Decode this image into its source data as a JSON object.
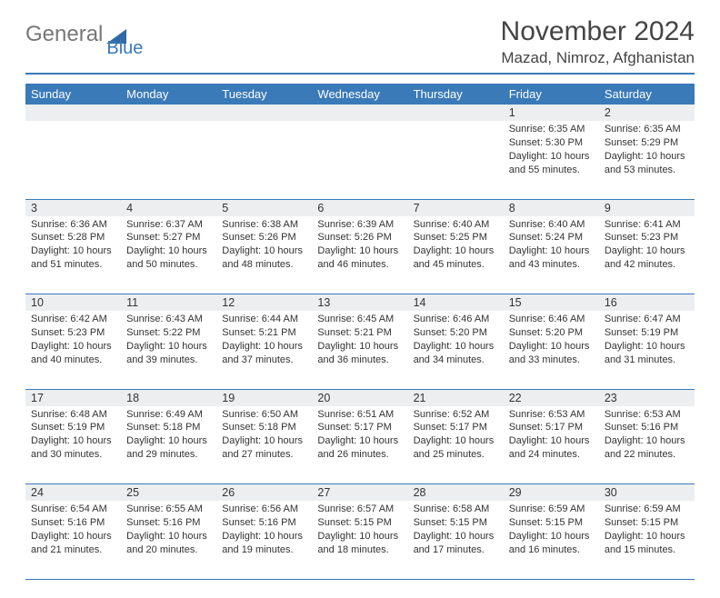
{
  "logo": {
    "part1": "General",
    "part2": "Blue"
  },
  "title": "November 2024",
  "location": "Mazad, Nimroz, Afghanistan",
  "header_color": "#3a7ab8",
  "weekdays": [
    "Sunday",
    "Monday",
    "Tuesday",
    "Wednesday",
    "Thursday",
    "Friday",
    "Saturday"
  ],
  "weeks": [
    {
      "nums": [
        "",
        "",
        "",
        "",
        "",
        "1",
        "2"
      ],
      "cells": [
        null,
        null,
        null,
        null,
        null,
        {
          "sunrise": "6:35 AM",
          "sunset": "5:30 PM",
          "daylight": "10 hours and 55 minutes."
        },
        {
          "sunrise": "6:35 AM",
          "sunset": "5:29 PM",
          "daylight": "10 hours and 53 minutes."
        }
      ]
    },
    {
      "nums": [
        "3",
        "4",
        "5",
        "6",
        "7",
        "8",
        "9"
      ],
      "cells": [
        {
          "sunrise": "6:36 AM",
          "sunset": "5:28 PM",
          "daylight": "10 hours and 51 minutes."
        },
        {
          "sunrise": "6:37 AM",
          "sunset": "5:27 PM",
          "daylight": "10 hours and 50 minutes."
        },
        {
          "sunrise": "6:38 AM",
          "sunset": "5:26 PM",
          "daylight": "10 hours and 48 minutes."
        },
        {
          "sunrise": "6:39 AM",
          "sunset": "5:26 PM",
          "daylight": "10 hours and 46 minutes."
        },
        {
          "sunrise": "6:40 AM",
          "sunset": "5:25 PM",
          "daylight": "10 hours and 45 minutes."
        },
        {
          "sunrise": "6:40 AM",
          "sunset": "5:24 PM",
          "daylight": "10 hours and 43 minutes."
        },
        {
          "sunrise": "6:41 AM",
          "sunset": "5:23 PM",
          "daylight": "10 hours and 42 minutes."
        }
      ]
    },
    {
      "nums": [
        "10",
        "11",
        "12",
        "13",
        "14",
        "15",
        "16"
      ],
      "cells": [
        {
          "sunrise": "6:42 AM",
          "sunset": "5:23 PM",
          "daylight": "10 hours and 40 minutes."
        },
        {
          "sunrise": "6:43 AM",
          "sunset": "5:22 PM",
          "daylight": "10 hours and 39 minutes."
        },
        {
          "sunrise": "6:44 AM",
          "sunset": "5:21 PM",
          "daylight": "10 hours and 37 minutes."
        },
        {
          "sunrise": "6:45 AM",
          "sunset": "5:21 PM",
          "daylight": "10 hours and 36 minutes."
        },
        {
          "sunrise": "6:46 AM",
          "sunset": "5:20 PM",
          "daylight": "10 hours and 34 minutes."
        },
        {
          "sunrise": "6:46 AM",
          "sunset": "5:20 PM",
          "daylight": "10 hours and 33 minutes."
        },
        {
          "sunrise": "6:47 AM",
          "sunset": "5:19 PM",
          "daylight": "10 hours and 31 minutes."
        }
      ]
    },
    {
      "nums": [
        "17",
        "18",
        "19",
        "20",
        "21",
        "22",
        "23"
      ],
      "cells": [
        {
          "sunrise": "6:48 AM",
          "sunset": "5:19 PM",
          "daylight": "10 hours and 30 minutes."
        },
        {
          "sunrise": "6:49 AM",
          "sunset": "5:18 PM",
          "daylight": "10 hours and 29 minutes."
        },
        {
          "sunrise": "6:50 AM",
          "sunset": "5:18 PM",
          "daylight": "10 hours and 27 minutes."
        },
        {
          "sunrise": "6:51 AM",
          "sunset": "5:17 PM",
          "daylight": "10 hours and 26 minutes."
        },
        {
          "sunrise": "6:52 AM",
          "sunset": "5:17 PM",
          "daylight": "10 hours and 25 minutes."
        },
        {
          "sunrise": "6:53 AM",
          "sunset": "5:17 PM",
          "daylight": "10 hours and 24 minutes."
        },
        {
          "sunrise": "6:53 AM",
          "sunset": "5:16 PM",
          "daylight": "10 hours and 22 minutes."
        }
      ]
    },
    {
      "nums": [
        "24",
        "25",
        "26",
        "27",
        "28",
        "29",
        "30"
      ],
      "cells": [
        {
          "sunrise": "6:54 AM",
          "sunset": "5:16 PM",
          "daylight": "10 hours and 21 minutes."
        },
        {
          "sunrise": "6:55 AM",
          "sunset": "5:16 PM",
          "daylight": "10 hours and 20 minutes."
        },
        {
          "sunrise": "6:56 AM",
          "sunset": "5:16 PM",
          "daylight": "10 hours and 19 minutes."
        },
        {
          "sunrise": "6:57 AM",
          "sunset": "5:15 PM",
          "daylight": "10 hours and 18 minutes."
        },
        {
          "sunrise": "6:58 AM",
          "sunset": "5:15 PM",
          "daylight": "10 hours and 17 minutes."
        },
        {
          "sunrise": "6:59 AM",
          "sunset": "5:15 PM",
          "daylight": "10 hours and 16 minutes."
        },
        {
          "sunrise": "6:59 AM",
          "sunset": "5:15 PM",
          "daylight": "10 hours and 15 minutes."
        }
      ]
    }
  ],
  "labels": {
    "sunrise": "Sunrise:",
    "sunset": "Sunset:",
    "daylight": "Daylight:"
  }
}
